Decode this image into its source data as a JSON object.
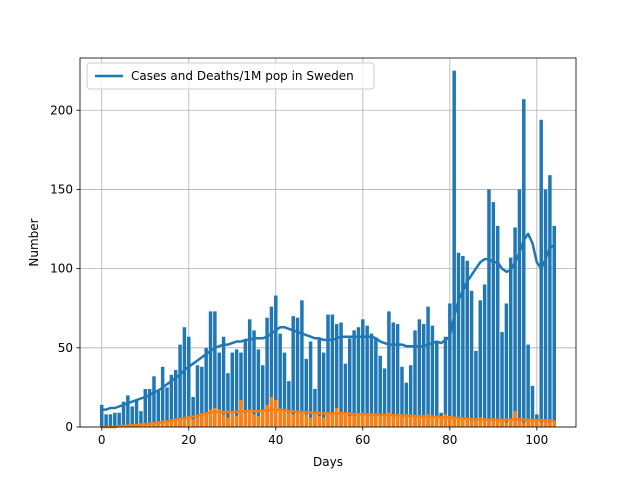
{
  "chart_data": {
    "type": "bar",
    "title": "",
    "xlabel": "Days",
    "ylabel": "Number",
    "xlim": [
      -5,
      109
    ],
    "ylim": [
      0,
      233
    ],
    "grid": true,
    "legend_position": "top-left",
    "colors": {
      "cases": "#1f77b4",
      "deaths": "#ff7f0e"
    },
    "x_ticks": [
      0,
      20,
      40,
      60,
      80,
      100
    ],
    "y_ticks": [
      0,
      50,
      100,
      150,
      200
    ],
    "legend": [
      "Cases and Deaths/1M pop in Sweden"
    ],
    "cases": [
      14,
      8,
      8,
      9,
      9,
      16,
      20,
      13,
      17,
      10,
      24,
      24,
      32,
      23,
      38,
      25,
      33,
      36,
      52,
      63,
      57,
      19,
      39,
      38,
      50,
      73,
      73,
      47,
      57,
      34,
      47,
      49,
      47,
      55,
      68,
      61,
      49,
      39,
      69,
      76,
      83,
      59,
      47,
      29,
      70,
      69,
      80,
      43,
      54,
      24,
      56,
      47,
      71,
      71,
      65,
      66,
      40,
      56,
      61,
      63,
      68,
      64,
      59,
      56,
      45,
      37,
      73,
      66,
      65,
      38,
      28,
      39,
      61,
      68,
      65,
      76,
      64,
      54,
      9,
      57,
      78,
      225,
      110,
      108,
      105,
      86,
      48,
      80,
      90,
      150,
      142,
      127,
      60,
      78,
      107,
      126,
      150,
      207,
      52,
      26,
      8,
      194,
      150,
      159,
      127
    ],
    "deaths": [
      0,
      0,
      0,
      0,
      0,
      0,
      0,
      1,
      1,
      2,
      2,
      2,
      3,
      3,
      4,
      4,
      4,
      5,
      5,
      5,
      6,
      5,
      6,
      7,
      9,
      11,
      12,
      11,
      8,
      6,
      9,
      7,
      17,
      9,
      11,
      8,
      7,
      10,
      14,
      19,
      17,
      11,
      10,
      9,
      8,
      10,
      9,
      8,
      6,
      9,
      7,
      6,
      8,
      9,
      12,
      9,
      8,
      7,
      7,
      8,
      9,
      8,
      8,
      7,
      8,
      7,
      9,
      8,
      7,
      7,
      8,
      7,
      7,
      7,
      7,
      8,
      7,
      6,
      6,
      8,
      7,
      6,
      5,
      6,
      5,
      4,
      5,
      6,
      5,
      4,
      4,
      5,
      4,
      3,
      5,
      10,
      4,
      3,
      5,
      4,
      4,
      3,
      5,
      3,
      4
    ],
    "cases_smoothed": [
      11,
      11,
      12,
      12,
      13,
      14,
      15,
      16,
      17,
      18,
      19,
      20,
      22,
      23,
      25,
      27,
      29,
      31,
      33,
      36,
      38,
      40,
      42,
      44,
      46,
      48,
      50,
      51,
      52,
      52,
      53,
      54,
      54,
      55,
      55,
      56,
      56,
      56,
      57,
      59,
      61,
      63,
      63,
      62,
      61,
      60,
      59,
      58,
      57,
      56,
      56,
      55,
      55,
      55,
      56,
      57,
      57,
      57,
      57,
      57,
      57,
      57,
      57,
      56,
      54,
      53,
      52,
      52,
      52,
      52,
      51,
      51,
      51,
      51,
      51,
      52,
      53,
      54,
      53,
      55,
      57,
      70,
      80,
      86,
      92,
      96,
      100,
      104,
      106,
      106,
      104,
      104,
      100,
      98,
      99,
      104,
      110,
      118,
      122,
      116,
      104,
      100,
      106,
      113,
      115
    ],
    "deaths_smoothed": [
      0,
      0,
      0,
      0,
      0.5,
      0.6,
      0.8,
      1,
      1.2,
      1.5,
      1.8,
      2,
      2.3,
      2.7,
      3,
      3.5,
      4,
      4.5,
      5,
      5.5,
      6,
      6.5,
      7,
      8,
      8.5,
      9,
      9.5,
      9.5,
      9.5,
      9.5,
      9.5,
      9.6,
      9.8,
      10,
      10,
      10,
      10,
      10.2,
      10.5,
      11,
      11,
      11,
      10.5,
      10,
      9.8,
      9.6,
      9.5,
      9.3,
      9,
      8.9,
      8.8,
      8.6,
      8.5,
      8.5,
      8.6,
      8.7,
      8.5,
      8.3,
      8.1,
      8,
      8,
      7.9,
      7.8,
      7.7,
      7.6,
      7.5,
      7.5,
      7.4,
      7.3,
      7.2,
      7.1,
      7,
      6.9,
      6.8,
      6.7,
      6.6,
      6.5,
      6.3,
      6.1,
      6,
      5.9,
      5.8,
      5.6,
      5.4,
      5.2,
      5,
      4.9,
      4.8,
      4.7,
      4.6,
      4.6,
      4.5,
      4.5,
      4.5,
      4.6,
      4.8,
      4.8,
      4.6,
      4.5,
      4.4,
      4.3,
      4.2,
      4.1,
      4.1,
      4
    ]
  }
}
